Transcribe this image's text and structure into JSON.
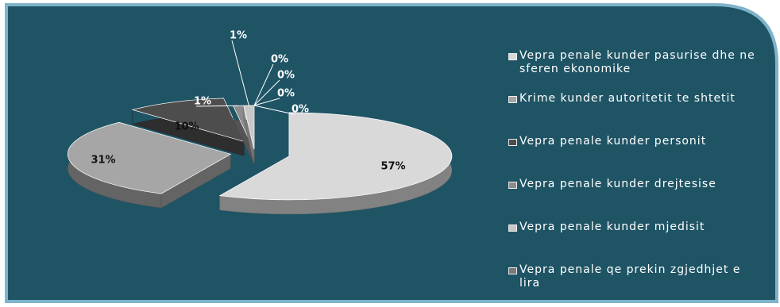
{
  "chart_data": {
    "type": "pie",
    "categories": [
      "Vepra penale kunder pasurise dhe ne sferen ekonomike",
      "Krime kunder autoritetit te shtetit",
      "Vepra penale kunder personit",
      "Vepra penale kunder drejtesise",
      "Vepra penale kunder mjedisit",
      "Vepra penale qe prekin zgjedhjet e lira",
      null,
      null,
      null
    ],
    "values": [
      57,
      31,
      10,
      1,
      1,
      0,
      0,
      0,
      0
    ],
    "value_labels": [
      "57%",
      "31%",
      "10%",
      "1%",
      "1%",
      "0%",
      "0%",
      "0%",
      "0%"
    ],
    "colors": [
      "#d9d9d9",
      "#a6a6a6",
      "#4d4d4d",
      "#8c8c8c",
      "#c8c8c8",
      "#7a7a7a",
      "#b0b0b0",
      "#666666",
      "#e0e0e0"
    ],
    "legend": "right"
  }
}
